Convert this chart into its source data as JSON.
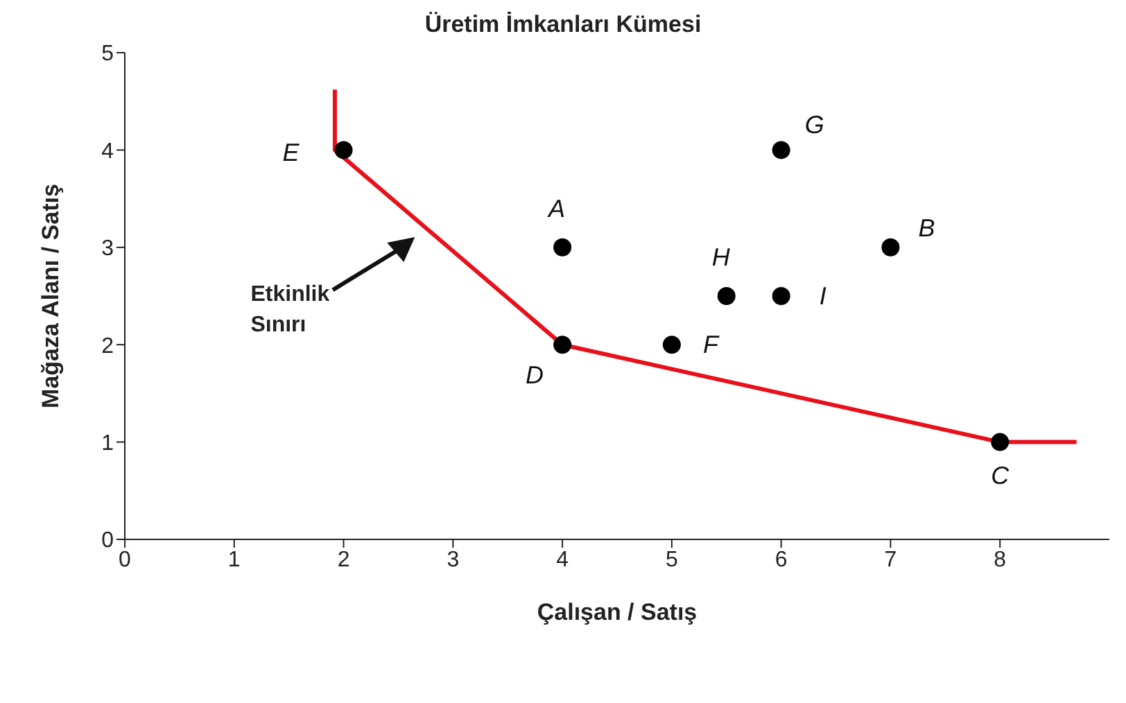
{
  "chart_data": {
    "type": "scatter",
    "title": "Üretim İmkanları Kümesi",
    "xlabel": "Çalışan / Satış",
    "ylabel": "Mağaza Alanı / Satış",
    "x": [
      2,
      4,
      4,
      5,
      5.5,
      6,
      6,
      7,
      8
    ],
    "series": [
      {
        "color": "#000000",
        "values": [
          4,
          3,
          2,
          2,
          2.5,
          2.5,
          4,
          3,
          1
        ],
        "marker": "circle"
      },
      {
        "type": "line",
        "color": "#e8101a",
        "x": [
          1.92,
          1.92,
          4,
          8,
          8.7
        ],
        "values": [
          4.62,
          4,
          2,
          1,
          1
        ],
        "marker": "none",
        "line_style": "solid"
      }
    ],
    "xlim": [
      0,
      9
    ],
    "xticks": [
      0,
      1,
      2,
      3,
      4,
      5,
      6,
      7,
      8
    ],
    "ylim": [
      0,
      5
    ],
    "yticks": [
      0,
      1,
      2,
      3,
      4,
      5
    ],
    "grid": false,
    "legend": false,
    "annotations": [
      {
        "text": "E",
        "x": 2,
        "y": 4
      },
      {
        "text": "A",
        "x": 4,
        "y": 3
      },
      {
        "text": "D",
        "x": 4,
        "y": 2
      },
      {
        "text": "F",
        "x": 5,
        "y": 2
      },
      {
        "text": "H",
        "x": 5.5,
        "y": 2.5
      },
      {
        "text": "I",
        "x": 6,
        "y": 2.5
      },
      {
        "text": "G",
        "x": 6,
        "y": 4
      },
      {
        "text": "B",
        "x": 7,
        "y": 3
      },
      {
        "text": "C",
        "x": 8,
        "y": 1
      },
      "Etkinlik Sınırı"
    ]
  }
}
